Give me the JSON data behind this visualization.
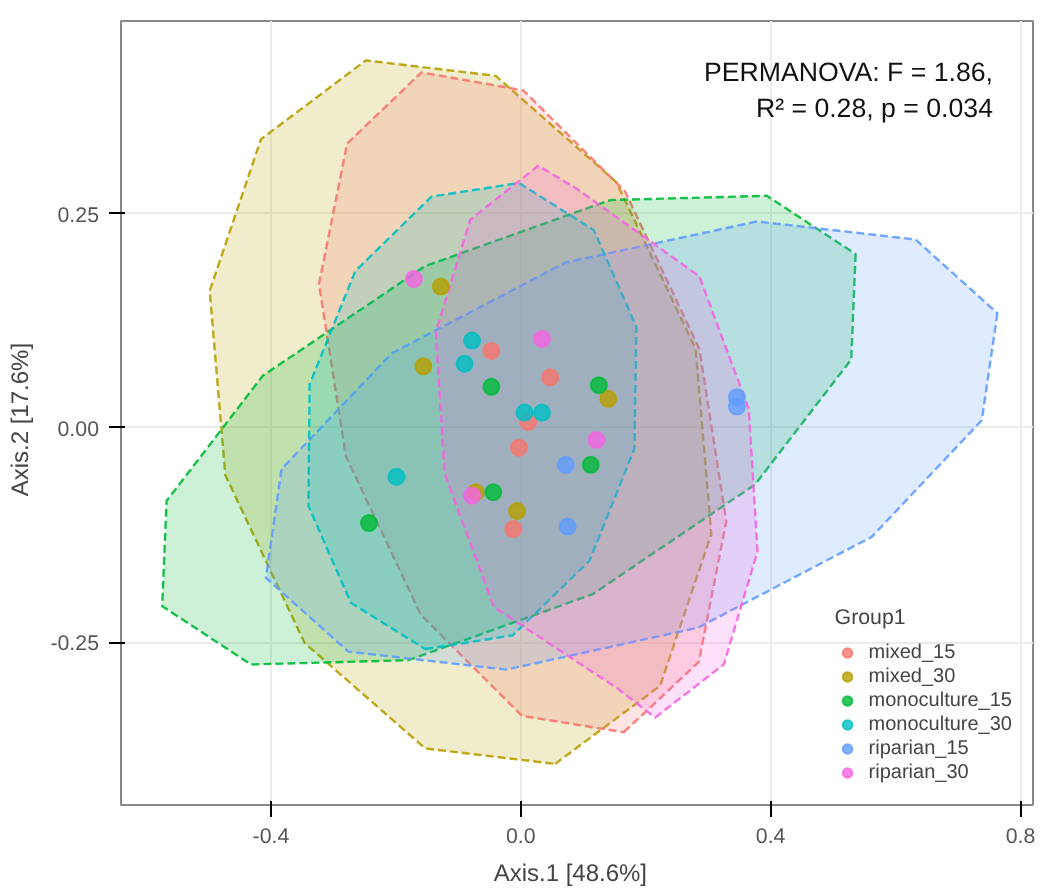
{
  "chart_data": {
    "type": "scatter",
    "xlabel": "Axis.1   [48.6%]",
    "ylabel": "Axis.2   [17.6%]",
    "legend_title": "Group1",
    "legend": "bottom right",
    "grid": true,
    "xlim": [
      -0.64,
      0.82
    ],
    "ylim": [
      -0.44,
      0.475
    ],
    "xticks": [
      {
        "value": -0.4,
        "label": "-0.4"
      },
      {
        "value": 0,
        "label": "0.0"
      },
      {
        "value": 0.4,
        "label": "0.4"
      },
      {
        "value": 0.8,
        "label": "0.8"
      }
    ],
    "yticks": [
      {
        "value": -0.25,
        "label": "-0.25"
      },
      {
        "value": 0,
        "label": "0.00"
      },
      {
        "value": 0.25,
        "label": "0.25"
      }
    ],
    "annotations": [
      "PERMANOVA: F = 1.86,\nR² = 0.28, p = 0.034"
    ],
    "series": [
      {
        "type": "area",
        "line_style": "dashed",
        "color": "#b79f00",
        "x": [
          0.055,
          0.223,
          0.305,
          0.28,
          0.153,
          -0.04,
          -0.248,
          -0.416,
          -0.498,
          -0.473,
          -0.346,
          -0.153
        ],
        "values": [
          -0.392,
          -0.301,
          -0.124,
          0.092,
          0.287,
          0.411,
          0.429,
          0.337,
          0.16,
          -0.055,
          -0.251,
          -0.374
        ]
      },
      {
        "type": "area",
        "line_style": "dashed",
        "color": "#f8766d",
        "x": [
          0.165,
          0.285,
          0.329,
          0.286,
          0.167,
          0.004,
          -0.159,
          -0.278,
          -0.323,
          -0.28,
          -0.16,
          0.002
        ],
        "values": [
          -0.355,
          -0.273,
          -0.109,
          0.092,
          0.276,
          0.394,
          0.415,
          0.332,
          0.168,
          -0.033,
          -0.218,
          -0.336
        ]
      },
      {
        "type": "area",
        "line_style": "dashed",
        "color": "#00ba38",
        "x": [
          0.536,
          0.529,
          0.375,
          0.115,
          -0.18,
          -0.432,
          -0.574,
          -0.567,
          -0.413,
          -0.153,
          0.143,
          0.394
        ],
        "values": [
          0.203,
          0.08,
          -0.066,
          -0.194,
          -0.271,
          -0.276,
          -0.208,
          -0.085,
          0.061,
          0.189,
          0.266,
          0.271
        ]
      },
      {
        "type": "area",
        "line_style": "dashed",
        "color": "#619cff",
        "x": [
          0.763,
          0.738,
          0.562,
          0.284,
          -0.023,
          -0.276,
          -0.408,
          -0.383,
          -0.207,
          0.071,
          0.378,
          0.632
        ],
        "values": [
          0.134,
          0.009,
          -0.127,
          -0.233,
          -0.282,
          -0.261,
          -0.175,
          -0.048,
          0.087,
          0.193,
          0.241,
          0.22
        ]
      },
      {
        "type": "area",
        "line_style": "dashed",
        "color": "#00bfc4",
        "x": [
          -0.153,
          -0.013,
          0.11,
          0.182,
          0.185,
          0.117,
          -0.003,
          -0.143,
          -0.265,
          -0.338,
          -0.34,
          -0.272
        ],
        "values": [
          -0.258,
          -0.242,
          -0.155,
          -0.024,
          0.118,
          0.231,
          0.286,
          0.27,
          0.183,
          0.051,
          -0.091,
          -0.204
        ]
      },
      {
        "type": "area",
        "line_style": "dashed",
        "color": "#f564e3",
        "x": [
          0.215,
          0.325,
          0.379,
          0.365,
          0.286,
          0.088,
          0.028,
          -0.081,
          -0.136,
          -0.122,
          -0.043,
          0.155
        ],
        "values": [
          -0.338,
          -0.276,
          -0.144,
          0.022,
          0.177,
          0.28,
          0.306,
          0.243,
          0.112,
          -0.053,
          -0.209,
          -0.304
        ]
      },
      {
        "name": "mixed_15",
        "marker": "circle",
        "color": "#f8766d",
        "x": [
          -0.047,
          0.047,
          0.012,
          -0.012,
          -0.003
        ],
        "values": [
          0.09,
          0.059,
          0.007,
          -0.118,
          -0.023
        ]
      },
      {
        "name": "mixed_30",
        "marker": "circle",
        "color": "#b79f00",
        "x": [
          -0.128,
          -0.156,
          0.14,
          -0.006,
          -0.072
        ],
        "values": [
          0.165,
          0.072,
          0.034,
          -0.097,
          -0.075
        ]
      },
      {
        "name": "monoculture_15",
        "marker": "circle",
        "color": "#00ba38",
        "x": [
          -0.047,
          0.125,
          0.112,
          -0.044,
          -0.243
        ],
        "values": [
          0.048,
          0.05,
          -0.043,
          -0.075,
          -0.111
        ]
      },
      {
        "name": "monoculture_30",
        "marker": "circle",
        "color": "#00bfc4",
        "x": [
          -0.078,
          -0.09,
          0.006,
          0.034,
          -0.199
        ],
        "values": [
          0.102,
          0.075,
          0.018,
          0.018,
          -0.057
        ]
      },
      {
        "name": "riparian_15",
        "marker": "circle",
        "color": "#619cff",
        "x": [
          0.072,
          0.075,
          0.346,
          0.346
        ],
        "values": [
          -0.043,
          -0.115,
          0.025,
          0.036
        ]
      },
      {
        "name": "riparian_30",
        "marker": "circle",
        "color": "#f564e3",
        "x": [
          -0.171,
          0.034,
          0.121,
          -0.078
        ],
        "values": [
          0.174,
          0.104,
          -0.014,
          -0.079
        ]
      }
    ]
  }
}
